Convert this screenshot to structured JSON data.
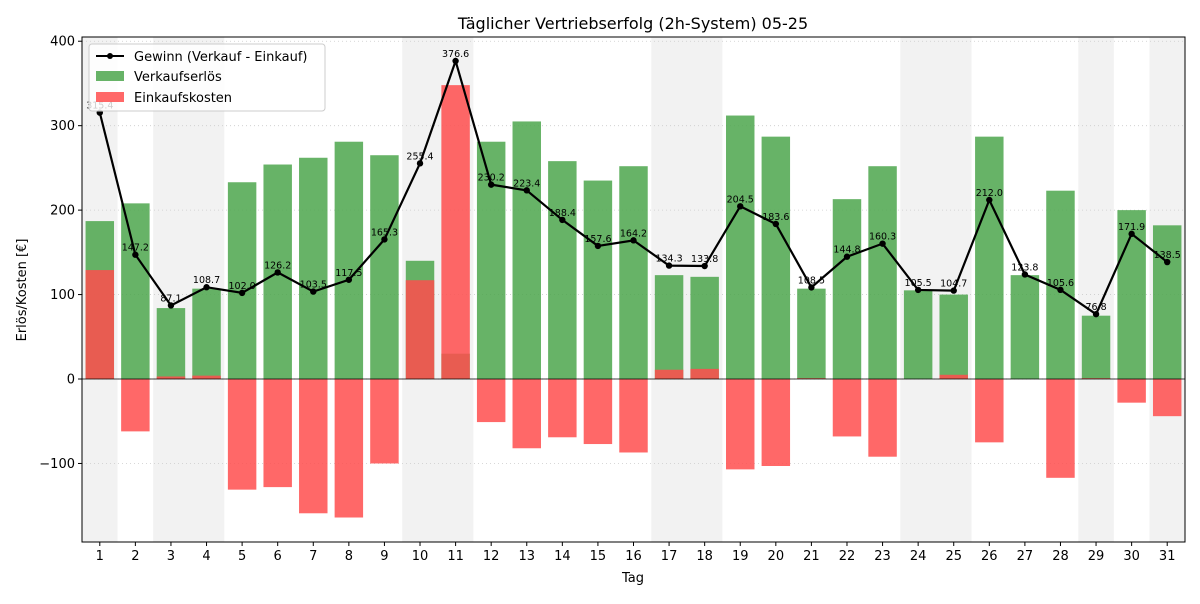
{
  "chart_data": {
    "type": "bar",
    "title": "Täglicher Vertriebserfolg (2h-System) 05-25",
    "xlabel": "Tag",
    "ylabel": "Erlös/Kosten [€]",
    "categories": [
      "1",
      "2",
      "3",
      "4",
      "5",
      "6",
      "7",
      "8",
      "9",
      "10",
      "11",
      "12",
      "13",
      "14",
      "15",
      "16",
      "17",
      "18",
      "19",
      "20",
      "21",
      "22",
      "23",
      "24",
      "25",
      "26",
      "27",
      "28",
      "29",
      "30",
      "31"
    ],
    "ylim": [
      -193,
      405
    ],
    "yticks": [
      -100,
      0,
      100,
      200,
      300,
      400
    ],
    "grid": "horizontal dotted",
    "legend_placement": "top-left",
    "shaded_days": [
      1,
      3,
      4,
      10,
      11,
      17,
      18,
      24,
      25,
      29,
      31
    ],
    "series": [
      {
        "name": "Gewinn (Verkauf - Einkauf)",
        "kind": "line",
        "color": "#000000",
        "values": [
          315.4,
          147.2,
          87.1,
          108.7,
          102.0,
          126.2,
          103.5,
          117.5,
          165.3,
          255.4,
          376.6,
          230.2,
          223.4,
          188.4,
          157.6,
          164.2,
          134.3,
          133.8,
          204.5,
          183.6,
          108.5,
          144.8,
          160.3,
          105.5,
          104.7,
          212.0,
          123.8,
          105.6,
          76.8,
          171.9,
          138.5
        ],
        "labels": [
          "315.4",
          "147.2",
          "87.1",
          "108.7",
          "102.0",
          "126.2",
          "103.5",
          "117.5",
          "165.3",
          "255.4",
          "376.6",
          "230.2",
          "223.4",
          "188.4",
          "157.6",
          "164.2",
          "134.3",
          "133.8",
          "204.5",
          "183.6",
          "108.5",
          "144.8",
          "160.3",
          "105.5",
          "104.7",
          "212.0",
          "123.8",
          "105.6",
          "76.8",
          "171.9",
          "138.5"
        ]
      },
      {
        "name": "Verkaufserlös",
        "kind": "bar",
        "color": "#4ca64c",
        "values": [
          187,
          208,
          84,
          107,
          233,
          254,
          262,
          281,
          265,
          140,
          30,
          281,
          305,
          258,
          235,
          252,
          123,
          121,
          312,
          287,
          107,
          213,
          252,
          105,
          100,
          287,
          123,
          223,
          75,
          200,
          182
        ]
      },
      {
        "name": "Einkaufskosten",
        "kind": "bar",
        "color": "#ff4d4d",
        "values": [
          129,
          -62,
          3,
          4,
          -131,
          -128,
          -159,
          -164,
          -100,
          117,
          348,
          -51,
          -82,
          -69,
          -77,
          -87,
          11,
          12,
          -107,
          -103,
          1,
          -68,
          -92,
          0,
          5,
          -75,
          0,
          -117,
          1,
          -28,
          -44
        ]
      }
    ]
  }
}
